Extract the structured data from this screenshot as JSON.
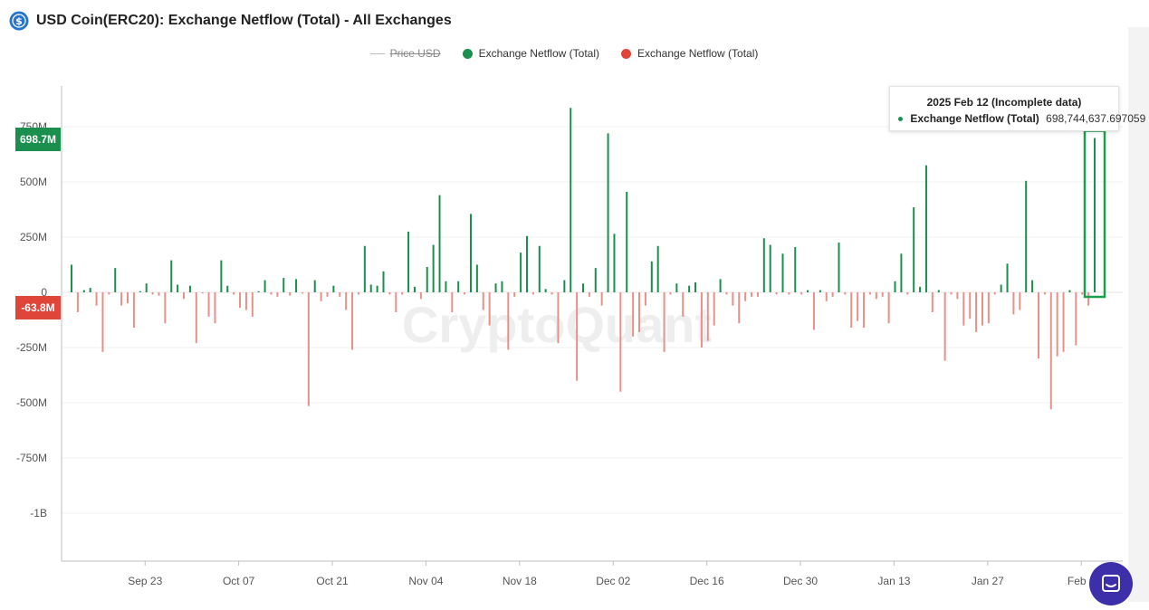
{
  "header": {
    "title": "USD Coin(ERC20): Exchange Netflow (Total) - All Exchanges",
    "icon": "usdc-coin-icon"
  },
  "legend": [
    {
      "label": "Price USD",
      "state": "hidden"
    },
    {
      "label": "Exchange Netflow (Total)",
      "color": "#1a8f4e"
    },
    {
      "label": "Exchange Netflow (Total)",
      "color": "#e0453a"
    }
  ],
  "tooltip": {
    "date": "2025 Feb 12",
    "note": "(Incomplete data)",
    "series": "Exchange Netflow (Total)",
    "value": "698,744,637.697059",
    "color": "#1a8f4e"
  },
  "badges": {
    "latest_positive": "698.7M",
    "latest_negative": "-63.8M"
  },
  "watermark": "CryptoQuant",
  "colors": {
    "positive": "#1a8f4e",
    "negative": "#e8908a",
    "badge_positive": "#1a8f4e",
    "badge_negative": "#e0453a",
    "highlight": "#1aa04a",
    "chat": "#3d2fa9"
  },
  "chart_data": {
    "type": "bar",
    "title": "USD Coin(ERC20): Exchange Netflow (Total) - All Exchanges",
    "ylim": [
      -1250000000,
      880000000
    ],
    "yticks": [
      {
        "value": 750000000,
        "label": "750M"
      },
      {
        "value": 500000000,
        "label": "500M"
      },
      {
        "value": 250000000,
        "label": "250M"
      },
      {
        "value": 0,
        "label": "0"
      },
      {
        "value": -250000000,
        "label": "-250M"
      },
      {
        "value": -500000000,
        "label": "-500M"
      },
      {
        "value": -750000000,
        "label": "-750M"
      },
      {
        "value": -1000000000,
        "label": "-1B"
      }
    ],
    "xticks": [
      "Sep 23",
      "Oct 07",
      "Oct 21",
      "Nov 04",
      "Nov 18",
      "Dec 02",
      "Dec 16",
      "Dec 30",
      "Jan 13",
      "Jan 27",
      "Feb 1"
    ],
    "first_date": "2024-09-12",
    "last_date": "2025-02-12",
    "grid": true,
    "series": [
      {
        "name": "Exchange Netflow (Total)",
        "values": [
          125,
          -90,
          10,
          20,
          -60,
          -270,
          -10,
          110,
          -60,
          -50,
          -160,
          5,
          40,
          -10,
          -15,
          -140,
          145,
          35,
          -30,
          30,
          -230,
          -5,
          -110,
          -140,
          145,
          30,
          -10,
          -70,
          -80,
          -110,
          5,
          55,
          -10,
          -20,
          65,
          -15,
          60,
          -5,
          -515,
          55,
          -40,
          -20,
          30,
          -20,
          -80,
          -260,
          -10,
          210,
          35,
          30,
          95,
          -10,
          -90,
          -10,
          275,
          25,
          -30,
          115,
          215,
          440,
          50,
          -90,
          50,
          -10,
          355,
          125,
          -80,
          -150,
          40,
          50,
          -260,
          -20,
          180,
          255,
          -10,
          210,
          15,
          -10,
          -230,
          55,
          835,
          -400,
          40,
          -20,
          110,
          -60,
          720,
          265,
          -450,
          455,
          -200,
          -180,
          -60,
          140,
          210,
          -270,
          -10,
          40,
          -110,
          30,
          45,
          -250,
          -220,
          -150,
          60,
          -10,
          -60,
          -140,
          -40,
          -20,
          -20,
          245,
          215,
          -10,
          175,
          -10,
          205,
          -10,
          10,
          -170,
          10,
          -40,
          -20,
          225,
          -10,
          -160,
          -130,
          -160,
          -10,
          -30,
          -20,
          -140,
          50,
          175,
          -10,
          385,
          25,
          575,
          -90,
          10,
          -310,
          -10,
          -30,
          -150,
          -120,
          -180,
          -150,
          -140,
          -10,
          35,
          130,
          -100,
          -80,
          505,
          55,
          -300,
          -10,
          -530,
          -290,
          -270,
          10,
          -240,
          -10,
          -60,
          698.7
        ]
      }
    ]
  }
}
